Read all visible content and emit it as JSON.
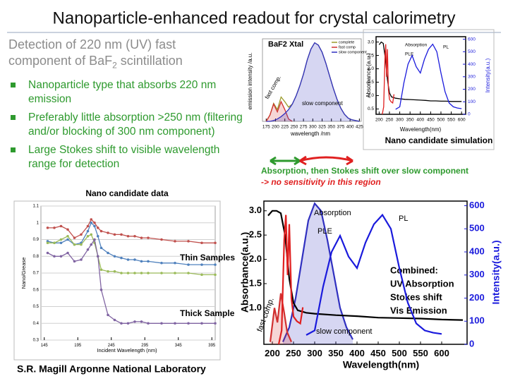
{
  "header": {
    "title": "Nanoparticle-enhanced readout for crystal calorimetry"
  },
  "intro": {
    "line1": "Detection of 220 nm (UV) fast",
    "line2": "component of BaF",
    "subscript": "2",
    "line2_end": " scintillation"
  },
  "bullets": [
    "Nanoparticle type that absorbs 220 nm emission",
    "Preferably little absorption >250 nm (filtering and/or blocking of 300 nm component)",
    "Large Stokes shift to visible wavelength range for detection"
  ],
  "note": {
    "line1": "Absorption, then Stokes shift over slow component",
    "line2": "-> no sensitivity in this region"
  },
  "combined_text": [
    "Combined:",
    "UV Absorption",
    "Stokes shift",
    "Vis Emission"
  ],
  "footer": "S.R. Magill  Argonne National Laboratory",
  "plots": {
    "nano_data": {
      "caption": "Nano candidate data",
      "ylabel": "Nano/Grease",
      "xlabel": "Incident Wavelength (nm)",
      "xlim": [
        140,
        400
      ],
      "ylim": [
        0.3,
        1.1
      ],
      "xticks": [
        145,
        195,
        245,
        295,
        345,
        395
      ],
      "yticks": [
        0.3,
        0.4,
        0.5,
        0.6,
        0.7,
        0.8,
        0.9,
        1,
        1.1
      ],
      "grid": true,
      "markers": true,
      "x": [
        150,
        160,
        170,
        180,
        190,
        200,
        210,
        215,
        220,
        225,
        230,
        240,
        250,
        260,
        270,
        280,
        290,
        300,
        320,
        340,
        360,
        380,
        400
      ],
      "series": [
        {
          "color": "#c0504d",
          "values": [
            0.97,
            0.97,
            0.98,
            0.96,
            0.91,
            0.93,
            0.98,
            1.02,
            1.0,
            0.97,
            0.95,
            0.94,
            0.93,
            0.93,
            0.92,
            0.92,
            0.91,
            0.91,
            0.9,
            0.89,
            0.89,
            0.88,
            0.88
          ]
        },
        {
          "color": "#4f81bd",
          "values": [
            0.89,
            0.88,
            0.88,
            0.9,
            0.87,
            0.88,
            0.95,
            1.0,
            0.98,
            0.92,
            0.85,
            0.82,
            0.8,
            0.79,
            0.78,
            0.78,
            0.77,
            0.77,
            0.76,
            0.76,
            0.75,
            0.75,
            0.75
          ]
        },
        {
          "color": "#9bbb59",
          "values": [
            0.88,
            0.88,
            0.9,
            0.92,
            0.87,
            0.87,
            0.92,
            0.93,
            0.88,
            0.8,
            0.72,
            0.71,
            0.71,
            0.7,
            0.7,
            0.7,
            0.7,
            0.7,
            0.7,
            0.7,
            0.7,
            0.69,
            0.69
          ]
        },
        {
          "color": "#8064a2",
          "values": [
            0.82,
            0.8,
            0.8,
            0.82,
            0.77,
            0.78,
            0.84,
            0.87,
            0.9,
            0.8,
            0.6,
            0.45,
            0.42,
            0.4,
            0.4,
            0.41,
            0.41,
            0.4,
            0.4,
            0.4,
            0.4,
            0.4,
            0.4
          ]
        }
      ],
      "annotations": [
        "Thin Samples",
        "Thick Sample"
      ]
    },
    "baf2": {
      "title": "BaF2 Xtal",
      "ylabel": "emission intensity /a.u.",
      "xlabel": "wavelength /nm",
      "xlim": [
        165,
        430
      ],
      "ylim": [
        0,
        105
      ],
      "xticks": [
        175,
        200,
        225,
        250,
        275,
        300,
        325,
        350,
        375,
        400,
        425
      ],
      "legend": true,
      "series": [
        {
          "name": "complete",
          "color": "#9a9a2a",
          "x": [
            175,
            185,
            195,
            205,
            215,
            225,
            235,
            245,
            255,
            265,
            275,
            285,
            295,
            305,
            315,
            325,
            335,
            345,
            355,
            365,
            375,
            385,
            395,
            405,
            415,
            425
          ],
          "values": [
            0,
            8,
            23,
            15,
            31,
            25,
            18,
            22,
            32,
            45,
            60,
            78,
            92,
            100,
            97,
            88,
            74,
            58,
            42,
            28,
            17,
            9,
            4,
            2,
            1,
            0
          ]
        },
        {
          "name": "fast comp",
          "color": "#d03030",
          "fill": true,
          "x": [
            175,
            185,
            195,
            205,
            215,
            225,
            235,
            245
          ],
          "values": [
            0,
            8,
            22,
            12,
            25,
            15,
            3,
            0
          ]
        },
        {
          "name": "slow component",
          "color": "#3030c0",
          "fill": true,
          "x": [
            175,
            185,
            195,
            205,
            215,
            225,
            235,
            245,
            255,
            265,
            275,
            285,
            295,
            305,
            315,
            325,
            335,
            345,
            355,
            365,
            375,
            385,
            395,
            405,
            415,
            425
          ],
          "values": [
            0,
            0,
            1,
            3,
            6,
            10,
            15,
            22,
            32,
            45,
            60,
            78,
            92,
            100,
            97,
            88,
            74,
            58,
            42,
            28,
            17,
            9,
            4,
            2,
            1,
            0
          ]
        }
      ],
      "annotations": [
        "fast comp.",
        "slow component"
      ]
    },
    "simulation": {
      "caption": "Nano candidate simulation",
      "ylabel": "Absorbance (a.u.)",
      "y2label": "Intensity(a.u.)",
      "xlabel": "Wavelength(nm)",
      "xlim": [
        185,
        620
      ],
      "ylim": [
        0.3,
        3.2
      ],
      "y2lim": [
        0,
        620
      ],
      "xticks": [
        200,
        250,
        300,
        350,
        400,
        450,
        500,
        550,
        600
      ],
      "yticks": [
        0.5,
        {
          "value": 1,
          "label": "1.0"
        },
        1.5,
        {
          "value": 2,
          "label": "2.0"
        },
        2.5,
        {
          "value": 3,
          "label": "3.0"
        }
      ],
      "y2ticks": [
        0,
        100,
        200,
        300,
        400,
        500,
        600
      ],
      "series": [
        {
          "name": "Absorption",
          "color": "#000000",
          "x": [
            200,
            210,
            220,
            230,
            240,
            250,
            260,
            280,
            300,
            325,
            350,
            375,
            400,
            425,
            450,
            475,
            500,
            525,
            550,
            575,
            600
          ],
          "values": [
            2.9,
            3.0,
            2.95,
            2.4,
            1.6,
            1.1,
            0.95,
            0.9,
            0.88,
            0.86,
            0.85,
            0.84,
            0.83,
            0.82,
            0.8,
            0.8,
            0.79,
            0.79,
            0.78,
            0.78,
            0.78
          ]
        },
        {
          "name": "PLE",
          "color": "#e02020",
          "axis": "y2",
          "x": [
            215,
            222,
            228,
            232,
            236,
            240,
            245,
            250,
            258,
            266,
            272
          ],
          "values": [
            0,
            60,
            450,
            560,
            300,
            520,
            200,
            120,
            100,
            90,
            160
          ]
        },
        {
          "name": "PL",
          "color": "#1a1adc",
          "axis": "y2",
          "x": [
            280,
            300,
            320,
            340,
            360,
            380,
            400,
            420,
            440,
            460,
            480,
            500,
            520,
            540,
            560,
            580,
            600
          ],
          "values": [
            40,
            60,
            250,
            400,
            470,
            380,
            330,
            440,
            520,
            560,
            500,
            330,
            180,
            90,
            60,
            50,
            45
          ]
        }
      ]
    },
    "combined": {
      "ylabel": "Absorbance(a.u.)",
      "y2label": "Intensity(a.u.)",
      "xlabel": "Wavelength(nm)",
      "xlim": [
        180,
        660
      ],
      "ylim": [
        0.25,
        3.2
      ],
      "y2lim": [
        0,
        620
      ],
      "xticks": [
        200,
        250,
        300,
        350,
        400,
        450,
        500,
        550,
        600
      ],
      "yticks": [
        {
          "value": 1,
          "label": "1.0"
        },
        1.5,
        {
          "value": 2,
          "label": "2.0"
        },
        2.5,
        {
          "value": 3,
          "label": "3.0"
        }
      ],
      "y2ticks": [
        0,
        100,
        200,
        300,
        400,
        500,
        600
      ],
      "series": [
        {
          "name": "slow component",
          "color": "#3030c0",
          "fill": true,
          "x": [
            225,
            240,
            255,
            270,
            285,
            300,
            315,
            330,
            345,
            360,
            375,
            390
          ],
          "values": [
            0.3,
            0.6,
            1.2,
            2.0,
            2.8,
            3.15,
            3.0,
            2.4,
            1.7,
            1.0,
            0.6,
            0.35
          ]
        },
        {
          "name": "fast comp.",
          "color": "#d03030",
          "fill": true,
          "x": [
            195,
            205,
            212,
            220,
            228,
            235,
            245
          ],
          "values": [
            0.3,
            1.0,
            0.7,
            1.3,
            0.9,
            0.5,
            0.3
          ]
        },
        {
          "name": "Absorption",
          "color": "#000000",
          "x": [
            190,
            200,
            210,
            220,
            230,
            240,
            250,
            260,
            280,
            300,
            350,
            400,
            450,
            500,
            550,
            600,
            650
          ],
          "values": [
            2.9,
            3.0,
            3.0,
            2.95,
            2.5,
            1.6,
            1.1,
            0.95,
            0.9,
            0.88,
            0.85,
            0.83,
            0.8,
            0.79,
            0.78,
            0.76,
            0.75
          ]
        },
        {
          "name": "PLE",
          "color": "#e02020",
          "axis": "y2",
          "x": [
            215,
            222,
            228,
            232,
            236,
            240,
            245,
            250,
            258,
            266,
            272
          ],
          "values": [
            0,
            60,
            450,
            560,
            300,
            520,
            200,
            120,
            100,
            90,
            160
          ]
        },
        {
          "name": "PL",
          "color": "#1a1adc",
          "axis": "y2",
          "x": [
            280,
            300,
            320,
            340,
            360,
            380,
            400,
            420,
            440,
            460,
            480,
            500,
            520,
            540,
            560,
            580,
            600
          ],
          "values": [
            40,
            60,
            250,
            400,
            470,
            380,
            330,
            440,
            520,
            560,
            500,
            330,
            180,
            90,
            60,
            50,
            45
          ]
        }
      ]
    }
  }
}
